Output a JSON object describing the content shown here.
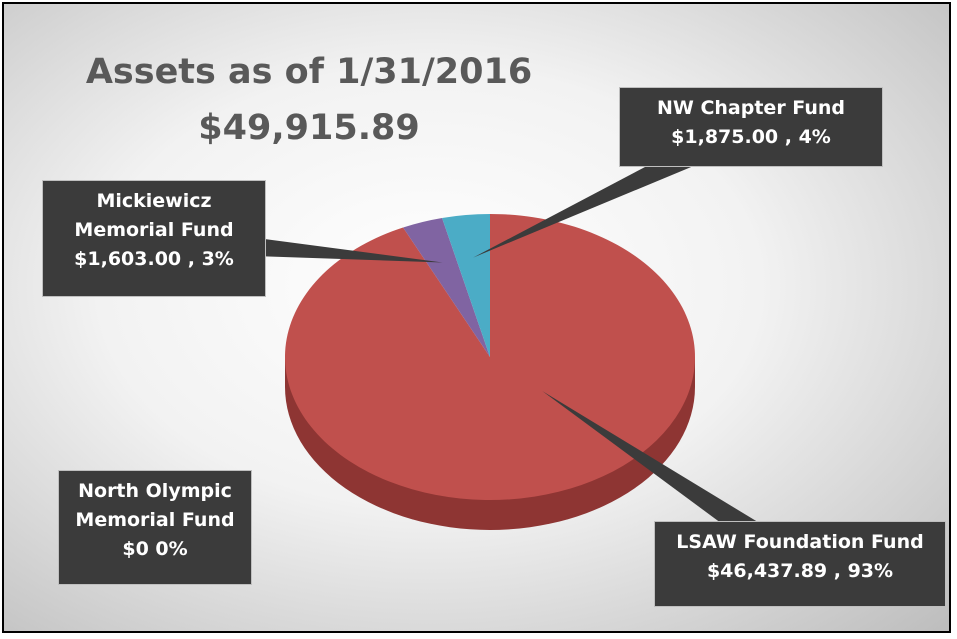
{
  "chart_data": {
    "type": "pie",
    "title": "Assets as of 1/31/2016",
    "subtitle": "$49,915.89",
    "categories": [
      "LSAW Foundation Fund",
      "North Olympic Memorial Fund",
      "Mickiewicz Memorial Fund",
      "NW Chapter Fund"
    ],
    "values": [
      46437.89,
      0,
      1603.0,
      1875.0
    ],
    "value_labels": [
      "$46,437.89 , 93%",
      "$0 0%",
      "$1,603.00 , 3%",
      "$1,875.00 , 4%"
    ],
    "colors": [
      "#c0504d",
      "#9bbb59",
      "#8064a2",
      "#4bacc6"
    ]
  }
}
